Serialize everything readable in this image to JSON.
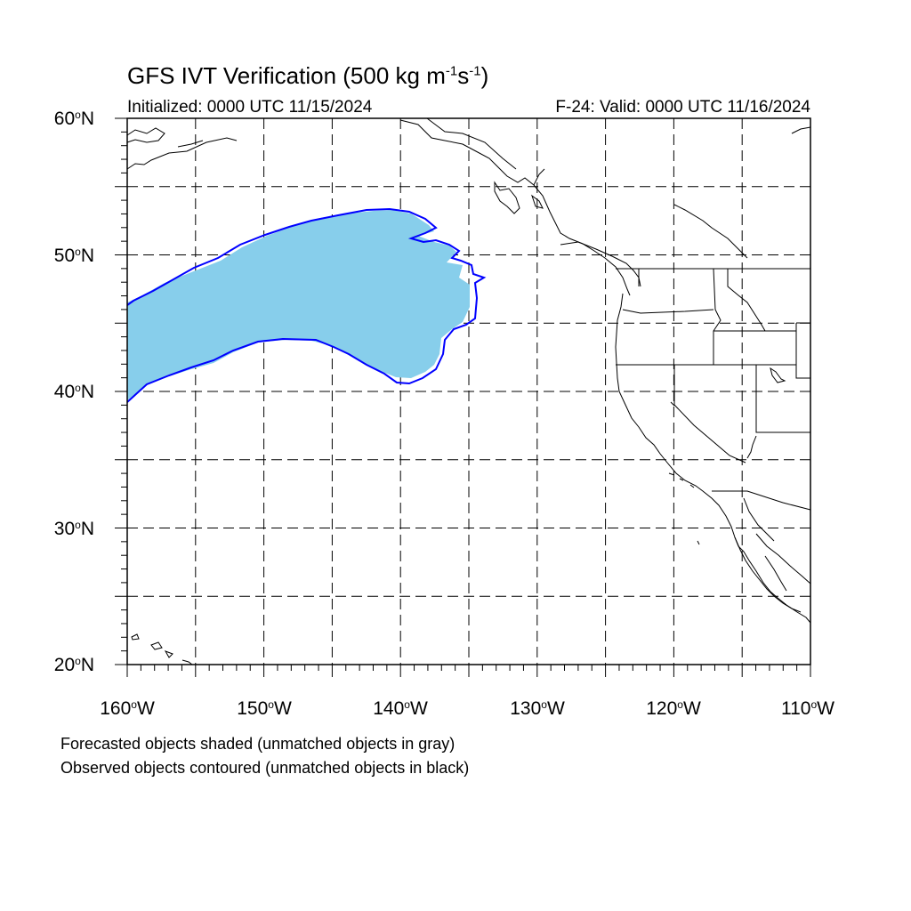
{
  "title": {
    "main": "GFS IVT Verification (500 kg m",
    "exp1": "-1",
    "mid": "s",
    "exp2": "-1",
    "end": ")"
  },
  "initialized": "Initialized: 0000 UTC 11/15/2024",
  "valid": "F-24: Valid: 0000 UTC 11/16/2024",
  "lat_labels": [
    {
      "num": "60",
      "deg": "o",
      "hem": "N"
    },
    {
      "num": "50",
      "deg": "o",
      "hem": "N"
    },
    {
      "num": "40",
      "deg": "o",
      "hem": "N"
    },
    {
      "num": "30",
      "deg": "o",
      "hem": "N"
    },
    {
      "num": "20",
      "deg": "o",
      "hem": "N"
    }
  ],
  "lon_labels": [
    {
      "num": "160",
      "deg": "o",
      "hem": "W"
    },
    {
      "num": "150",
      "deg": "o",
      "hem": "W"
    },
    {
      "num": "140",
      "deg": "o",
      "hem": "W"
    },
    {
      "num": "130",
      "deg": "o",
      "hem": "W"
    },
    {
      "num": "120",
      "deg": "o",
      "hem": "W"
    },
    {
      "num": "110",
      "deg": "o",
      "hem": "W"
    }
  ],
  "map": {
    "lon_range": [
      -160,
      -110
    ],
    "lat_range": [
      20,
      60
    ],
    "grid_lons": [
      -155,
      -150,
      -145,
      -140,
      -135,
      -130,
      -125,
      -120,
      -115
    ],
    "grid_lats": [
      25,
      30,
      35,
      40,
      45,
      50,
      55
    ]
  },
  "legend": {
    "line1": "Forecasted objects shaded (unmatched objects in gray)",
    "line2": "Observed objects contoured (unmatched objects in black)"
  },
  "colors": {
    "forecast_fill": "#87ceeb",
    "observed_contour": "#0000ff",
    "coastline": "#000000",
    "grid": "#000000"
  }
}
